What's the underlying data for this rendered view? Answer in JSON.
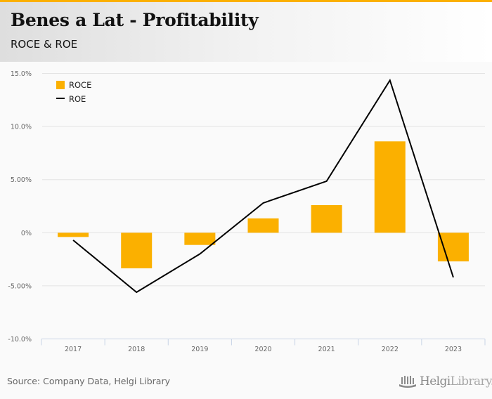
{
  "header": {
    "title": "Benes a Lat - Profitability",
    "subtitle": "ROCE & ROE"
  },
  "footer": {
    "source": "Source: Company Data, Helgi Library",
    "logo_bold": "Helgi",
    "logo_light": "Library."
  },
  "colors": {
    "accent": "#fbb000",
    "roce_bar": "#fbb000",
    "roe_line": "#000000",
    "grid": "#e3e3e3",
    "axis": "#c8d4e6"
  },
  "chart_data": {
    "type": "bar",
    "title": "Benes a Lat - Profitability",
    "subtitle": "ROCE & ROE",
    "xlabel": "",
    "ylabel": "",
    "categories": [
      "2017",
      "2018",
      "2019",
      "2020",
      "2021",
      "2022",
      "2023"
    ],
    "series": [
      {
        "name": "ROCE",
        "type": "bar",
        "values": [
          -0.4,
          -3.35,
          -1.15,
          1.35,
          2.6,
          8.6,
          -2.7
        ]
      },
      {
        "name": "ROE",
        "type": "line",
        "values": [
          -0.7,
          -5.6,
          -2.0,
          2.8,
          4.85,
          14.35,
          -4.2
        ]
      }
    ],
    "ylim": [
      -10,
      15
    ],
    "yticks": [
      {
        "value": 15,
        "label": "15.0%"
      },
      {
        "value": 10,
        "label": "10.0%"
      },
      {
        "value": 5,
        "label": "5.00%"
      },
      {
        "value": 0,
        "label": "0%"
      },
      {
        "value": -5,
        "label": "-5.00%"
      },
      {
        "value": -10,
        "label": "-10.0%"
      }
    ],
    "grid": true,
    "legend": {
      "position": "top-left",
      "entries": [
        "ROCE",
        "ROE"
      ]
    }
  }
}
